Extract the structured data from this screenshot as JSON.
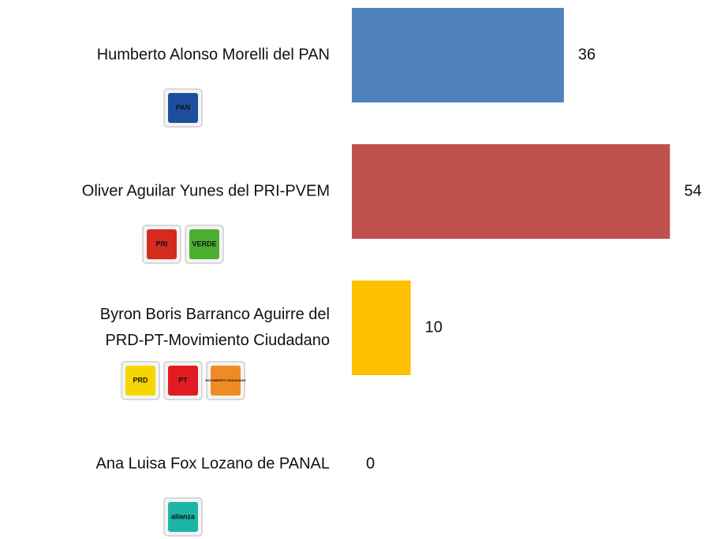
{
  "chart_data": {
    "type": "bar",
    "orientation": "horizontal",
    "categories": [
      "Humberto Alonso Morelli del PAN",
      "Oliver Aguilar Yunes del PRI-PVEM",
      "Byron Boris Barranco Aguirre del\nPRD-PT-Movimiento Ciudadano",
      "Ana Luisa Fox Lozano de PANAL"
    ],
    "values": [
      36,
      54,
      10,
      0
    ],
    "colors": [
      "#4f81bd",
      "#c0504d",
      "#ffc000",
      null
    ],
    "xlim": [
      0,
      60
    ],
    "logos": [
      [
        {
          "text": "PAN",
          "color": "#1d4f9e"
        }
      ],
      [
        {
          "text": "PRI",
          "color": "#d52b1e"
        },
        {
          "text": "VERDE",
          "color": "#4caf32"
        }
      ],
      [
        {
          "text": "PRD",
          "color": "#f6d600"
        },
        {
          "text": "PT",
          "color": "#e31b23"
        },
        {
          "text": "MOVIMIENTO CIUDADANO",
          "color": "#f08a24"
        }
      ],
      [
        {
          "text": "alianza",
          "color": "#1eb5a6"
        }
      ]
    ]
  }
}
